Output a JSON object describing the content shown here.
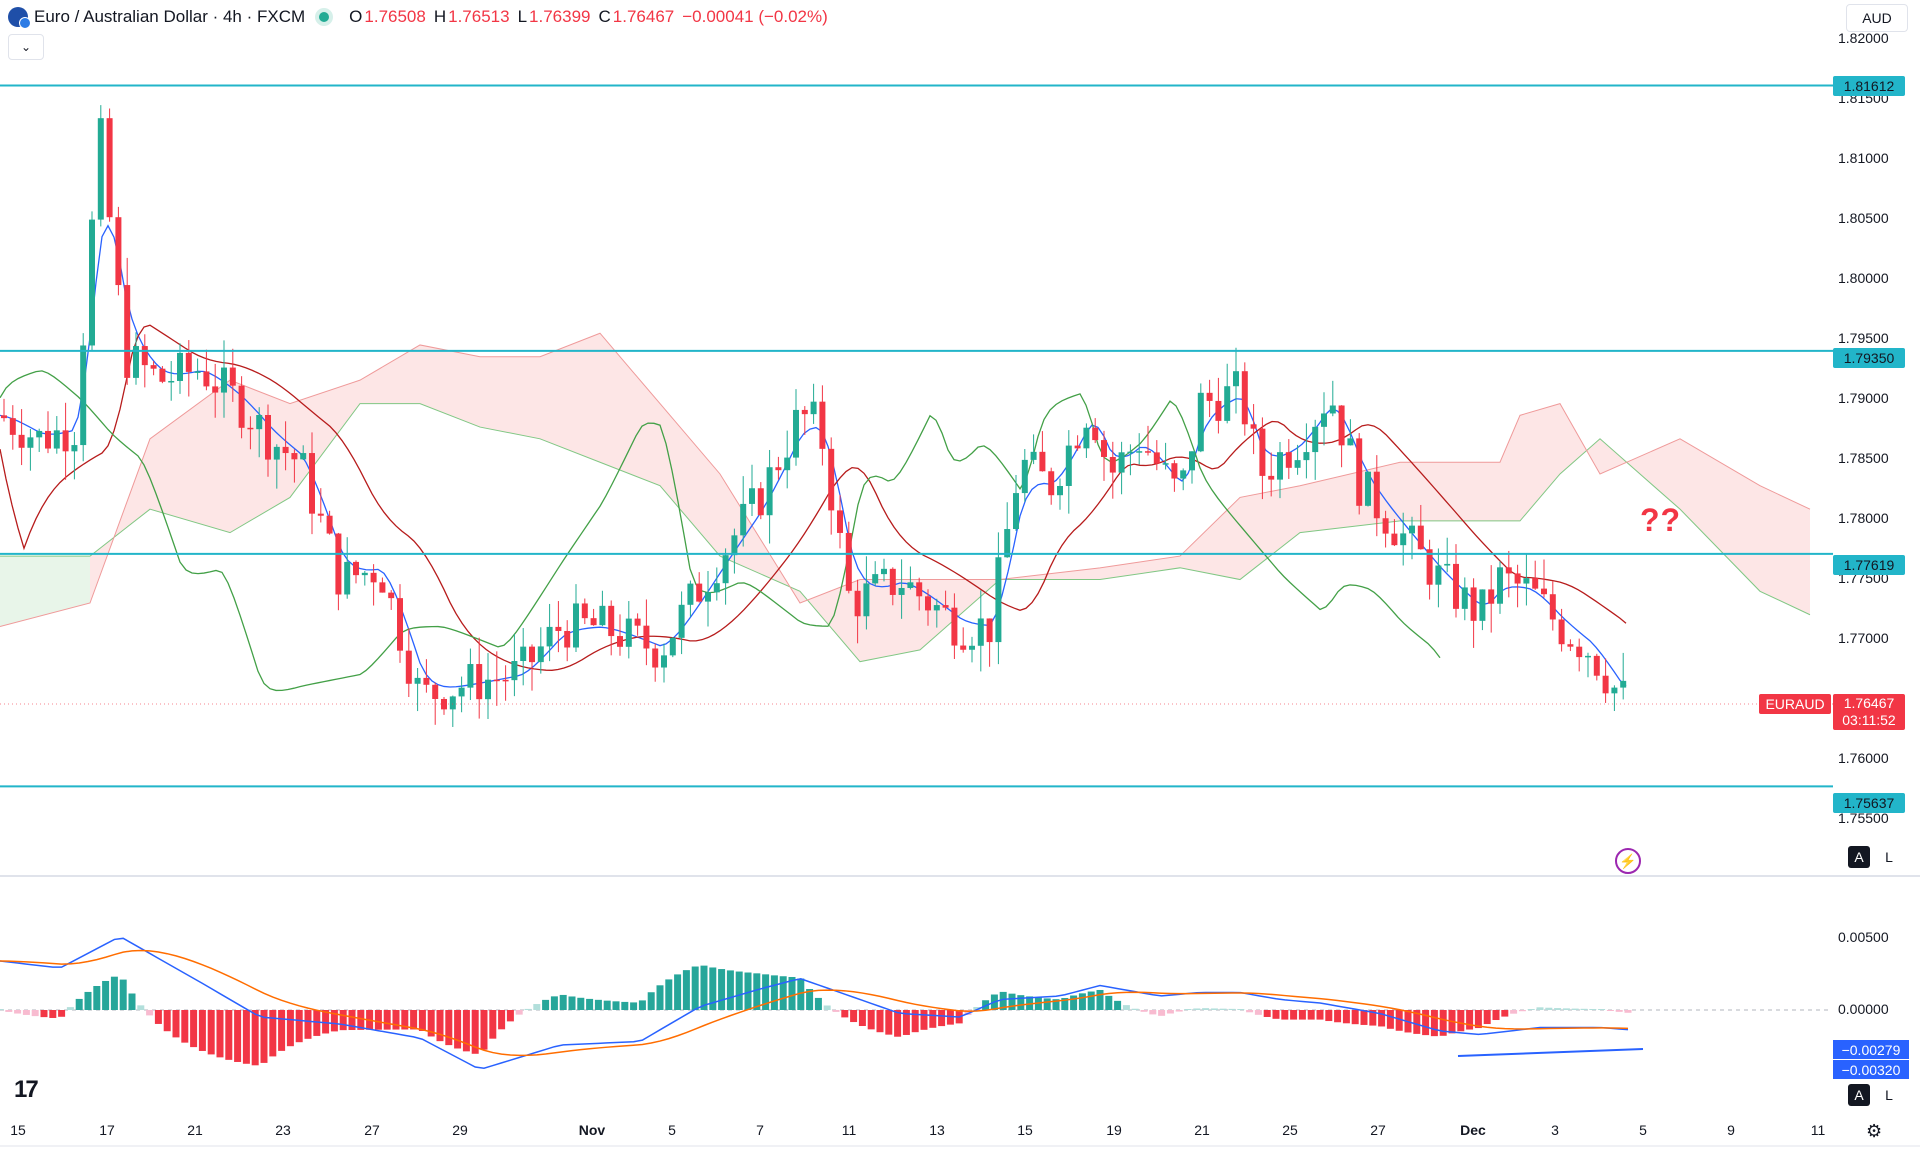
{
  "header": {
    "title": "Euro / Australian Dollar · 4h · FXCM",
    "open_label": "O",
    "open": "1.76508",
    "high_label": "H",
    "high": "1.76513",
    "low_label": "L",
    "low": "1.76399",
    "close_label": "C",
    "close": "1.76467",
    "change": "−0.00041 (−0.02%)",
    "currency": "AUD",
    "collapse_icon": "chevron-down-icon"
  },
  "price_axis": {
    "labels": [
      "1.82000",
      "1.81500",
      "1.81000",
      "1.80500",
      "1.80000",
      "1.79500",
      "1.79000",
      "1.78500",
      "1.78000",
      "1.77500",
      "1.77000",
      "1.76000",
      "1.75500"
    ]
  },
  "levels": {
    "l1": "1.81612",
    "l2": "1.79350",
    "l3": "1.77619",
    "l4": "1.75637"
  },
  "last_price": {
    "symbol": "EURAUD",
    "price": "1.76467",
    "countdown": "03:11:52"
  },
  "annotation": {
    "text": "??"
  },
  "macd_axis": {
    "labels": [
      "0.00500",
      "0.00000"
    ]
  },
  "macd_tags": {
    "macd": "−0.00279",
    "signal": "−0.00320"
  },
  "time_axis": {
    "labels": [
      "15",
      "17",
      "21",
      "23",
      "27",
      "29",
      "Nov",
      "5",
      "7",
      "11",
      "13",
      "15",
      "19",
      "21",
      "25",
      "27",
      "Dec",
      "3",
      "5",
      "9",
      "11"
    ]
  },
  "buttons": {
    "auto": "A",
    "log": "L"
  },
  "icons": {
    "tv_logo": "17",
    "bolt": "⚡",
    "settings": "⚙"
  },
  "colors": {
    "up": "#22ab94",
    "down": "#f23645",
    "level": "#22b5c9",
    "tenkan": "#2962ff",
    "kijun": "#b71c1c",
    "chikou": "#43a047",
    "cloud_up": "#e8f5e9",
    "cloud_down": "#fde6e6",
    "macd": "#2962ff",
    "signal": "#ff6d00"
  },
  "chart_data": {
    "type": "candlestick",
    "symbol": "EURAUD",
    "interval": "4h",
    "ylim": [
      1.7535,
      1.821
    ],
    "horizontal_levels": [
      1.81612,
      1.7935,
      1.77619,
      1.75637
    ],
    "ichimoku": true,
    "macd": true,
    "grid": false
  }
}
